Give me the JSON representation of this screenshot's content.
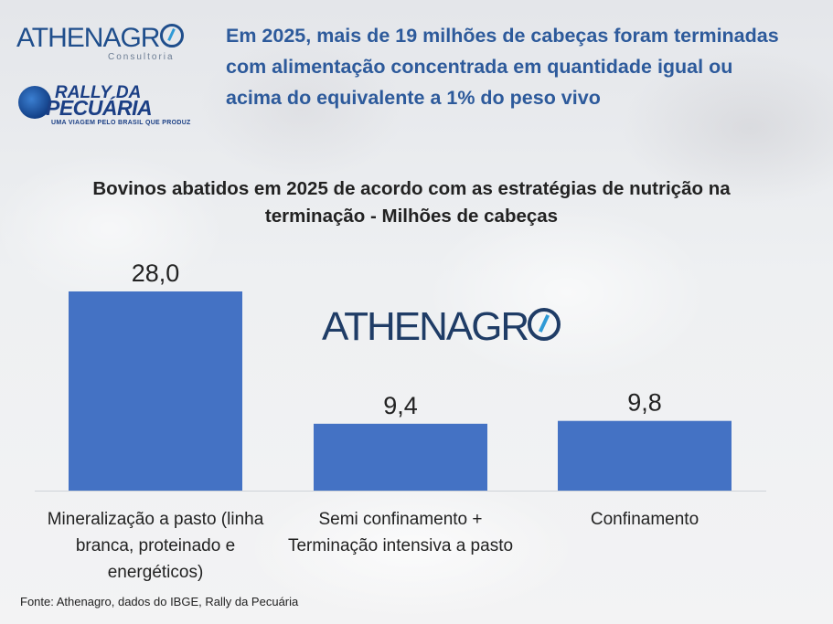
{
  "logos": {
    "athenagro_text": "ATHENAGR",
    "athenagro_sub": "Consultoria",
    "rally_line1": "RALLY DA",
    "rally_line2": "PECUÁRIA",
    "rally_line3": "UMA VIAGEM PELO BRASIL QUE PRODUZ"
  },
  "headline": "Em 2025, mais de 19 milhões de cabeças foram terminadas com alimentação concentrada em quantidade igual ou acima do equivalente a 1% do peso vivo",
  "watermark_text": "ATHENAGR",
  "source": "Fonte: Athenagro, dados do IBGE, Rally da Pecuária",
  "colors": {
    "bar": "#4472c4",
    "headline": "#2d5a9b"
  },
  "chart_data": {
    "type": "bar",
    "title": "Bovinos abatidos em 2025 de acordo com as estratégias de nutrição na terminação - Milhões de cabeças",
    "categories": [
      "Mineralização a pasto (linha branca, proteinado e energéticos)",
      "Semi confinamento + Terminação intensiva a pasto",
      "Confinamento"
    ],
    "values": [
      28.0,
      9.4,
      9.8
    ],
    "data_labels": [
      "28,0",
      "9,4",
      "9,8"
    ],
    "ylim": [
      0,
      28.0
    ],
    "grid": false,
    "legend": "none"
  }
}
